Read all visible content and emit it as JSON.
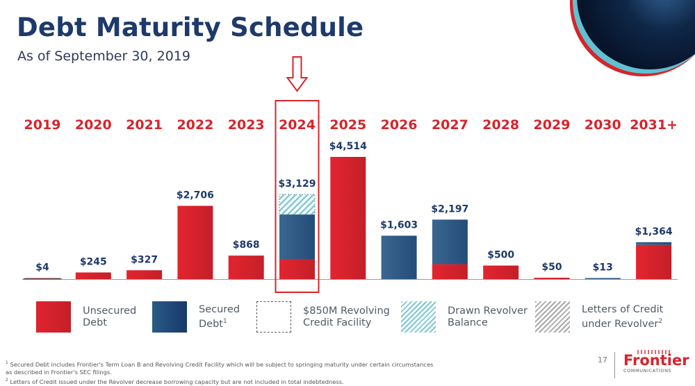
{
  "header": {
    "title": "Debt Maturity Schedule",
    "subtitle": "As of September 30, 2019"
  },
  "colors": {
    "title": "#1d3a6b",
    "year_labels": "#d8232a",
    "value_labels": "#1d3a6b",
    "unsecured": "#d8232a",
    "secured": "#2b5a86",
    "drawn_revolver": "#7cc7d3",
    "letters_of_credit": "#a9a9a9",
    "highlight": "#d8232a"
  },
  "chart_data": {
    "type": "bar",
    "stacked": true,
    "title": "Debt Maturity Schedule",
    "subtitle": "As of September 30, 2019",
    "units": "$ millions",
    "categories": [
      "2019",
      "2020",
      "2021",
      "2022",
      "2023",
      "2024",
      "2025",
      "2026",
      "2027",
      "2028",
      "2029",
      "2030",
      "2031+"
    ],
    "totals": [
      4,
      245,
      327,
      2706,
      868,
      3129,
      4514,
      1603,
      2197,
      500,
      50,
      13,
      1364
    ],
    "total_labels": [
      "$4",
      "$245",
      "$327",
      "$2,706",
      "$868",
      "$3,129",
      "$4,514",
      "$1,603",
      "$2,197",
      "$500",
      "$50",
      "$13",
      "$1,364"
    ],
    "series": [
      {
        "name": "Unsecured Debt",
        "key": "unsecured",
        "values": [
          4,
          245,
          327,
          2706,
          868,
          744,
          4514,
          0,
          550,
          500,
          50,
          0,
          1264
        ]
      },
      {
        "name": "Secured Debt",
        "key": "secured",
        "values": [
          0,
          0,
          0,
          0,
          0,
          1641,
          0,
          1603,
          1647,
          0,
          0,
          13,
          100
        ]
      },
      {
        "name": "Drawn Revolver Balance",
        "key": "drawn",
        "values": [
          0,
          0,
          0,
          0,
          0,
          744,
          0,
          0,
          0,
          0,
          0,
          0,
          0
        ]
      }
    ],
    "highlighted_category": "2024",
    "xlabel": "",
    "ylabel": "",
    "ylim": [
      0,
      4514
    ],
    "grid": false,
    "legend_position": "bottom"
  },
  "legend": [
    {
      "key": "unsecured",
      "label_line1": "Unsecured",
      "label_line2": "Debt",
      "sup": ""
    },
    {
      "key": "secured",
      "label_line1": "Secured",
      "label_line2": "Debt",
      "sup": "1"
    },
    {
      "key": "revolver",
      "label_line1": "$850M Revolving",
      "label_line2": "Credit Facility",
      "sup": ""
    },
    {
      "key": "drawn",
      "label_line1": "Drawn Revolver",
      "label_line2": "Balance",
      "sup": ""
    },
    {
      "key": "loc",
      "label_line1": "Letters of Credit",
      "label_line2": "under Revolver",
      "sup": "2"
    }
  ],
  "footnotes": {
    "note1_marker": "1",
    "note1_line1": "Secured Debt includes Frontier's Term Loan B and Revolving Credit Facility which will be subject to springing maturity under certain circumstances",
    "note1_line2": "as described in Frontier's SEC filings.",
    "note2_marker": "2",
    "note2": "Letters of Credit issued under the Revolver decrease borrowing capacity but are not included in total indebtedness."
  },
  "page_number": "17",
  "logo": {
    "name": "Frontier",
    "sub": "COMMUNICATIONS"
  }
}
